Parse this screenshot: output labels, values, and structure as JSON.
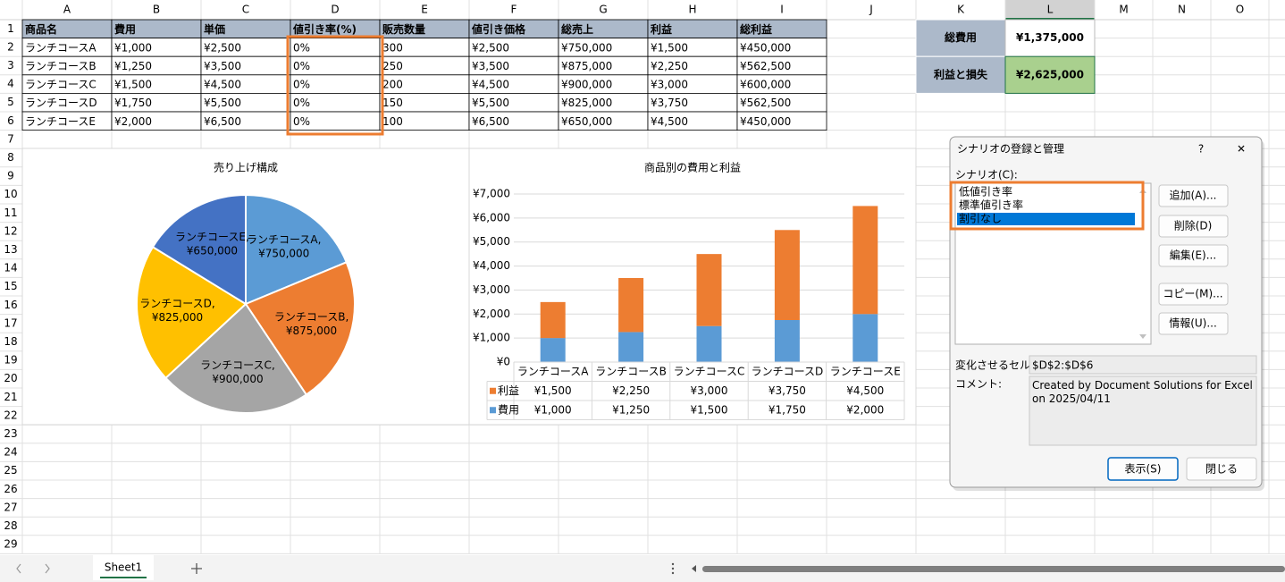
{
  "column_headers": [
    "A",
    "B",
    "C",
    "D",
    "E",
    "F",
    "G",
    "H",
    "I",
    "J",
    "K",
    "L",
    "M",
    "N",
    "O"
  ],
  "row_headers": [
    1,
    2,
    3,
    4,
    5,
    6,
    7,
    8,
    9,
    10,
    11,
    12,
    13,
    14,
    15,
    16,
    17,
    18,
    19,
    20,
    21,
    22,
    23,
    24,
    25,
    26,
    27,
    28,
    29
  ],
  "table": {
    "header": [
      "商品名",
      "費用",
      "単価",
      "値引き率(%)",
      "販売数量",
      "値引き価格",
      "総売上",
      "利益",
      "総利益"
    ],
    "rows": [
      [
        "ランチコースA",
        "¥1,000",
        "¥2,500",
        "0%",
        "300",
        "¥2,500",
        "¥750,000",
        "¥1,500",
        "¥450,000"
      ],
      [
        "ランチコースB",
        "¥1,250",
        "¥3,500",
        "0%",
        "250",
        "¥3,500",
        "¥875,000",
        "¥2,250",
        "¥562,500"
      ],
      [
        "ランチコースC",
        "¥1,500",
        "¥4,500",
        "0%",
        "200",
        "¥4,500",
        "¥900,000",
        "¥3,000",
        "¥600,000"
      ],
      [
        "ランチコースD",
        "¥1,750",
        "¥5,500",
        "0%",
        "150",
        "¥5,500",
        "¥825,000",
        "¥3,750",
        "¥562,500"
      ],
      [
        "ランチコースE",
        "¥2,000",
        "¥6,500",
        "0%",
        "100",
        "¥6,500",
        "¥650,000",
        "¥4,500",
        "¥450,000"
      ]
    ]
  },
  "summary": [
    {
      "label": "総費用",
      "value": "¥1,375,000"
    },
    {
      "label": "利益と損失",
      "value": "¥2,625,000"
    }
  ],
  "charts": [
    {
      "type": "pie",
      "title": "売り上げ構成",
      "categories": [
        "ランチコースA",
        "ランチコースB",
        "ランチコースC",
        "ランチコースD",
        "ランチコースE"
      ],
      "values": [
        750000,
        875000,
        900000,
        825000,
        650000
      ],
      "value_labels": [
        "¥750,000",
        "¥875,000",
        "¥900,000",
        "¥825,000",
        "¥650,000"
      ],
      "label_separator": ",",
      "colors": [
        "#5b9bd5",
        "#ed7d31",
        "#a5a5a5",
        "#ffc000",
        "#4472c4"
      ]
    },
    {
      "type": "bar",
      "stacked": true,
      "title": "商品別の費用と利益",
      "categories": [
        "ランチコースA",
        "ランチコースB",
        "ランチコースC",
        "ランチコースD",
        "ランチコースE"
      ],
      "series": [
        {
          "name": "費用",
          "color": "#5b9bd5",
          "values": [
            1000,
            1250,
            1500,
            1750,
            2000
          ],
          "value_labels": [
            "¥1,000",
            "¥1,250",
            "¥1,500",
            "¥1,750",
            "¥2,000"
          ]
        },
        {
          "name": "利益",
          "color": "#ed7d31",
          "values": [
            1500,
            2250,
            3000,
            3750,
            4500
          ],
          "value_labels": [
            "¥1,500",
            "¥2,250",
            "¥3,000",
            "¥3,750",
            "¥4,500"
          ]
        }
      ],
      "ylim": [
        0,
        7000
      ],
      "yticks": [
        {
          "value": 0,
          "label": "¥0"
        },
        {
          "value": 1000,
          "label": "¥1,000"
        },
        {
          "value": 2000,
          "label": "¥2,000"
        },
        {
          "value": 3000,
          "label": "¥3,000"
        },
        {
          "value": 4000,
          "label": "¥4,000"
        },
        {
          "value": 5000,
          "label": "¥5,000"
        },
        {
          "value": 6000,
          "label": "¥6,000"
        },
        {
          "value": 7000,
          "label": "¥7,000"
        }
      ],
      "grid": true
    }
  ],
  "dialog": {
    "title": "シナリオの登録と管理",
    "help": "?",
    "close": "✕",
    "list_label": "シナリオ(C):",
    "scenarios": [
      "低値引き率",
      "標準値引き率",
      "割引なし"
    ],
    "selected": 2,
    "side_buttons": [
      "追加(A)...",
      "削除(D)",
      "編集(E)...",
      "コピー(M)...",
      "情報(U)..."
    ],
    "changing_cells_label": "変化させるセル:",
    "changing_cells": "$D$2:$D$6",
    "comment_label": "コメント:",
    "comment": "Created by Document Solutions for Excel on 2025/04/11",
    "buttons": [
      "表示(S)",
      "閉じる"
    ]
  },
  "sheet_tabs": [
    "Sheet1"
  ]
}
